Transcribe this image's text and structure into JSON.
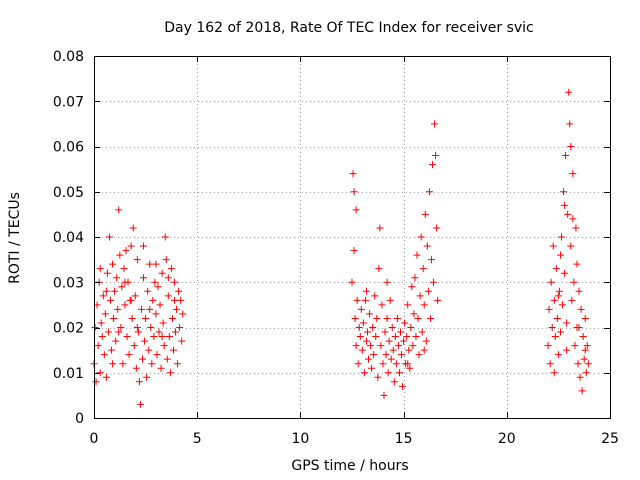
{
  "chart_data": {
    "type": "scatter",
    "title": "Day 162 of 2018, Rate Of TEC Index for receiver svic",
    "xlabel": "GPS time / hours",
    "ylabel": "ROTI / TECUs",
    "xlim": [
      0,
      25
    ],
    "ylim": [
      0,
      0.08
    ],
    "xticks": [
      0,
      5,
      10,
      15,
      20,
      25
    ],
    "xtick_labels": [
      "0",
      "5",
      "10",
      "15",
      "20",
      "25"
    ],
    "yticks": [
      0,
      0.01,
      0.02,
      0.03,
      0.04,
      0.05,
      0.06,
      0.07,
      0.08
    ],
    "ytick_labels": [
      "0",
      "0.01",
      "0.02",
      "0.03",
      "0.04",
      "0.05",
      "0.06",
      "0.07",
      "0.08"
    ],
    "grid": true,
    "marker": "+",
    "color": "#ff0000",
    "series": [
      {
        "name": "ROTI",
        "points": [
          [
            0.0,
            0.012
          ],
          [
            0.05,
            0.02
          ],
          [
            0.1,
            0.008
          ],
          [
            0.15,
            0.025
          ],
          [
            0.2,
            0.016
          ],
          [
            0.25,
            0.03
          ],
          [
            0.3,
            0.01
          ],
          [
            0.35,
            0.021
          ],
          [
            0.4,
            0.018
          ],
          [
            0.45,
            0.027
          ],
          [
            0.5,
            0.014
          ],
          [
            0.55,
            0.023
          ],
          [
            0.6,
            0.009
          ],
          [
            0.65,
            0.032
          ],
          [
            0.7,
            0.019
          ],
          [
            0.75,
            0.04
          ],
          [
            0.8,
            0.026
          ],
          [
            0.85,
            0.015
          ],
          [
            0.9,
            0.034
          ],
          [
            0.95,
            0.022
          ],
          [
            1.0,
            0.028
          ],
          [
            1.05,
            0.017
          ],
          [
            1.1,
            0.031
          ],
          [
            1.15,
            0.024
          ],
          [
            1.2,
            0.046
          ],
          [
            1.25,
            0.036
          ],
          [
            1.3,
            0.02
          ],
          [
            1.35,
            0.029
          ],
          [
            1.4,
            0.012
          ],
          [
            1.45,
            0.033
          ],
          [
            1.5,
            0.025
          ],
          [
            1.55,
            0.037
          ],
          [
            1.6,
            0.018
          ],
          [
            1.65,
            0.03
          ],
          [
            1.7,
            0.014
          ],
          [
            1.75,
            0.026
          ],
          [
            1.8,
            0.038
          ],
          [
            1.85,
            0.022
          ],
          [
            1.9,
            0.042
          ],
          [
            1.95,
            0.016
          ],
          [
            2.0,
            0.027
          ],
          [
            2.05,
            0.011
          ],
          [
            2.1,
            0.035
          ],
          [
            2.15,
            0.019
          ],
          [
            2.2,
            0.008
          ],
          [
            2.25,
            0.003
          ],
          [
            2.3,
            0.024
          ],
          [
            2.35,
            0.013
          ],
          [
            2.4,
            0.031
          ],
          [
            2.45,
            0.017
          ],
          [
            2.5,
            0.022
          ],
          [
            2.55,
            0.009
          ],
          [
            2.6,
            0.028
          ],
          [
            2.65,
            0.015
          ],
          [
            2.7,
            0.034
          ],
          [
            2.75,
            0.02
          ],
          [
            2.8,
            0.012
          ],
          [
            2.85,
            0.026
          ],
          [
            2.9,
            0.018
          ],
          [
            2.95,
            0.03
          ],
          [
            3.0,
            0.023
          ],
          [
            3.05,
            0.014
          ],
          [
            3.1,
            0.029
          ],
          [
            3.15,
            0.019
          ],
          [
            3.2,
            0.025
          ],
          [
            3.25,
            0.011
          ],
          [
            3.3,
            0.032
          ],
          [
            3.35,
            0.021
          ],
          [
            3.4,
            0.016
          ],
          [
            3.45,
            0.04
          ],
          [
            3.5,
            0.035
          ],
          [
            3.55,
            0.013
          ],
          [
            3.6,
            0.027
          ],
          [
            3.65,
            0.018
          ],
          [
            3.7,
            0.01
          ],
          [
            3.75,
            0.033
          ],
          [
            3.8,
            0.022
          ],
          [
            3.85,
            0.015
          ],
          [
            3.9,
            0.03
          ],
          [
            3.95,
            0.019
          ],
          [
            4.0,
            0.024
          ],
          [
            4.05,
            0.012
          ],
          [
            4.1,
            0.028
          ],
          [
            4.15,
            0.02
          ],
          [
            4.2,
            0.026
          ],
          [
            4.25,
            0.017
          ],
          [
            4.3,
            0.023
          ],
          [
            0.3,
            0.033
          ],
          [
            0.6,
            0.028
          ],
          [
            0.9,
            0.012
          ],
          [
            1.2,
            0.019
          ],
          [
            1.5,
            0.03
          ],
          [
            1.8,
            0.026
          ],
          [
            2.1,
            0.02
          ],
          [
            2.4,
            0.038
          ],
          [
            2.7,
            0.024
          ],
          [
            3.0,
            0.034
          ],
          [
            3.3,
            0.018
          ],
          [
            3.6,
            0.031
          ],
          [
            3.9,
            0.026
          ],
          [
            12.5,
            0.03
          ],
          [
            12.55,
            0.054
          ],
          [
            12.6,
            0.037
          ],
          [
            12.65,
            0.022
          ],
          [
            12.7,
            0.016
          ],
          [
            12.75,
            0.026
          ],
          [
            12.8,
            0.012
          ],
          [
            12.85,
            0.02
          ],
          [
            12.9,
            0.018
          ],
          [
            12.95,
            0.024
          ],
          [
            13.0,
            0.015
          ],
          [
            13.05,
            0.021
          ],
          [
            13.1,
            0.01
          ],
          [
            13.15,
            0.026
          ],
          [
            13.2,
            0.017
          ],
          [
            13.25,
            0.019
          ],
          [
            13.3,
            0.013
          ],
          [
            13.35,
            0.023
          ],
          [
            13.4,
            0.016
          ],
          [
            13.45,
            0.011
          ],
          [
            13.5,
            0.02
          ],
          [
            13.55,
            0.014
          ],
          [
            13.6,
            0.027
          ],
          [
            13.65,
            0.018
          ],
          [
            13.7,
            0.022
          ],
          [
            13.75,
            0.009
          ],
          [
            13.8,
            0.033
          ],
          [
            13.85,
            0.042
          ],
          [
            13.9,
            0.016
          ],
          [
            13.95,
            0.025
          ],
          [
            14.0,
            0.012
          ],
          [
            14.05,
            0.005
          ],
          [
            14.1,
            0.019
          ],
          [
            14.15,
            0.014
          ],
          [
            14.2,
            0.022
          ],
          [
            14.25,
            0.01
          ],
          [
            14.3,
            0.017
          ],
          [
            14.35,
            0.026
          ],
          [
            14.4,
            0.013
          ],
          [
            14.45,
            0.02
          ],
          [
            14.5,
            0.015
          ],
          [
            14.55,
            0.008
          ],
          [
            14.6,
            0.018
          ],
          [
            14.65,
            0.012
          ],
          [
            14.7,
            0.022
          ],
          [
            14.75,
            0.016
          ],
          [
            14.8,
            0.01
          ],
          [
            14.85,
            0.019
          ],
          [
            14.9,
            0.014
          ],
          [
            14.95,
            0.007
          ],
          [
            15.0,
            0.017
          ],
          [
            15.05,
            0.021
          ],
          [
            15.1,
            0.012
          ],
          [
            15.15,
            0.018
          ],
          [
            15.2,
            0.025
          ],
          [
            15.25,
            0.015
          ],
          [
            15.3,
            0.011
          ],
          [
            15.35,
            0.02
          ],
          [
            15.4,
            0.029
          ],
          [
            15.45,
            0.016
          ],
          [
            15.5,
            0.023
          ],
          [
            15.55,
            0.031
          ],
          [
            15.6,
            0.018
          ],
          [
            15.65,
            0.036
          ],
          [
            15.7,
            0.022
          ],
          [
            15.75,
            0.014
          ],
          [
            15.8,
            0.027
          ],
          [
            15.85,
            0.04
          ],
          [
            15.9,
            0.019
          ],
          [
            15.95,
            0.033
          ],
          [
            16.0,
            0.025
          ],
          [
            16.05,
            0.045
          ],
          [
            16.1,
            0.017
          ],
          [
            16.15,
            0.038
          ],
          [
            16.2,
            0.028
          ],
          [
            16.25,
            0.05
          ],
          [
            16.3,
            0.022
          ],
          [
            16.35,
            0.035
          ],
          [
            16.4,
            0.056
          ],
          [
            16.45,
            0.03
          ],
          [
            16.5,
            0.065
          ],
          [
            16.55,
            0.058
          ],
          [
            16.6,
            0.042
          ],
          [
            16.65,
            0.026
          ],
          [
            12.6,
            0.05
          ],
          [
            12.7,
            0.046
          ],
          [
            13.2,
            0.028
          ],
          [
            14.2,
            0.03
          ],
          [
            15.2,
            0.012
          ],
          [
            16.0,
            0.015
          ],
          [
            22.0,
            0.016
          ],
          [
            22.05,
            0.024
          ],
          [
            22.1,
            0.012
          ],
          [
            22.15,
            0.03
          ],
          [
            22.2,
            0.02
          ],
          [
            22.25,
            0.038
          ],
          [
            22.3,
            0.026
          ],
          [
            22.35,
            0.018
          ],
          [
            22.4,
            0.033
          ],
          [
            22.45,
            0.022
          ],
          [
            22.5,
            0.014
          ],
          [
            22.55,
            0.028
          ],
          [
            22.6,
            0.019
          ],
          [
            22.65,
            0.04
          ],
          [
            22.7,
            0.025
          ],
          [
            22.75,
            0.05
          ],
          [
            22.8,
            0.032
          ],
          [
            22.85,
            0.058
          ],
          [
            22.9,
            0.021
          ],
          [
            22.95,
            0.045
          ],
          [
            23.0,
            0.072
          ],
          [
            23.05,
            0.065
          ],
          [
            23.1,
            0.038
          ],
          [
            23.15,
            0.026
          ],
          [
            23.2,
            0.054
          ],
          [
            23.25,
            0.03
          ],
          [
            23.3,
            0.016
          ],
          [
            23.35,
            0.042
          ],
          [
            23.4,
            0.02
          ],
          [
            23.45,
            0.012
          ],
          [
            23.5,
            0.028
          ],
          [
            23.55,
            0.009
          ],
          [
            23.6,
            0.024
          ],
          [
            23.65,
            0.006
          ],
          [
            23.7,
            0.018
          ],
          [
            23.75,
            0.013
          ],
          [
            23.8,
            0.022
          ],
          [
            23.85,
            0.01
          ],
          [
            23.9,
            0.016
          ],
          [
            23.95,
            0.012
          ],
          [
            22.3,
            0.01
          ],
          [
            22.6,
            0.036
          ],
          [
            22.9,
            0.015
          ],
          [
            23.2,
            0.044
          ],
          [
            23.5,
            0.02
          ],
          [
            23.8,
            0.015
          ],
          [
            23.1,
            0.06
          ],
          [
            22.8,
            0.047
          ],
          [
            23.4,
            0.034
          ],
          [
            22.5,
            0.027
          ]
        ]
      }
    ]
  }
}
